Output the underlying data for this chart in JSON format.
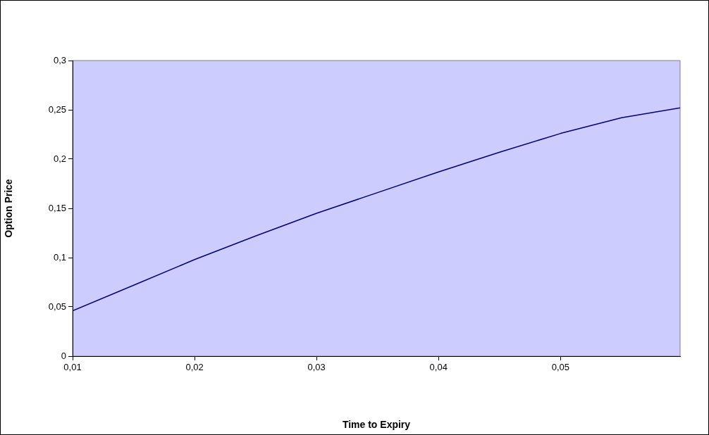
{
  "chart_data": {
    "type": "line",
    "xlabel": "Time to Expiry",
    "ylabel": "Option Price",
    "series": [
      {
        "color": "#000080",
        "x": [
          0.01,
          0.015,
          0.02,
          0.025,
          0.03,
          0.035,
          0.04,
          0.045,
          0.05,
          0.055,
          0.0598
        ],
        "values": [
          0.046,
          0.072,
          0.098,
          0.122,
          0.145,
          0.166,
          0.187,
          0.207,
          0.226,
          0.242,
          0.252
        ]
      }
    ],
    "xlim": [
      0.01,
      0.0598
    ],
    "xticks": [
      {
        "value": 0.01,
        "label": "0,01"
      },
      {
        "value": 0.02,
        "label": "0,02"
      },
      {
        "value": 0.03,
        "label": "0,03"
      },
      {
        "value": 0.04,
        "label": "0,04"
      },
      {
        "value": 0.05,
        "label": "0,05"
      }
    ],
    "ylim": [
      0,
      0.3
    ],
    "yticks": [
      0,
      {
        "value": 0.05,
        "label": "0,05"
      },
      {
        "value": 0.1,
        "label": "0,1"
      },
      {
        "value": 0.15,
        "label": "0,15"
      },
      {
        "value": 0.2,
        "label": "0,2"
      },
      {
        "value": 0.25,
        "label": "0,25"
      },
      {
        "value": 0.3,
        "label": "0,3"
      }
    ],
    "grid": false,
    "legend": false,
    "marker": "none",
    "line_style": "solid"
  }
}
